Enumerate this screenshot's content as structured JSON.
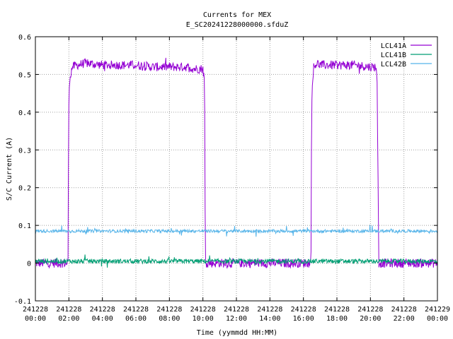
{
  "chart_data": {
    "type": "line",
    "title": "Currents for MEX",
    "subtitle": "E_SC20241228000000.sfduZ",
    "xlabel": "Time (yymmdd HH:MM)",
    "ylabel": "S/C Current (A)",
    "xlim": [
      0,
      24
    ],
    "ylim": [
      -0.1,
      0.6
    ],
    "grid": true,
    "legend_position": "top-right",
    "y_ticks": [
      {
        "value": -0.1,
        "label": "-0.1"
      },
      {
        "value": 0,
        "label": "0"
      },
      {
        "value": 0.1,
        "label": "0.1"
      },
      {
        "value": 0.2,
        "label": "0.2"
      },
      {
        "value": 0.3,
        "label": "0.3"
      },
      {
        "value": 0.4,
        "label": "0.4"
      },
      {
        "value": 0.5,
        "label": "0.5"
      },
      {
        "value": 0.6,
        "label": "0.6"
      }
    ],
    "x_ticks": [
      {
        "value": 0,
        "date": "241228",
        "time": "00:00"
      },
      {
        "value": 2,
        "date": "241228",
        "time": "02:00"
      },
      {
        "value": 4,
        "date": "241228",
        "time": "04:00"
      },
      {
        "value": 6,
        "date": "241228",
        "time": "06:00"
      },
      {
        "value": 8,
        "date": "241228",
        "time": "08:00"
      },
      {
        "value": 10,
        "date": "241228",
        "time": "10:00"
      },
      {
        "value": 12,
        "date": "241228",
        "time": "12:00"
      },
      {
        "value": 14,
        "date": "241228",
        "time": "14:00"
      },
      {
        "value": 16,
        "date": "241228",
        "time": "16:00"
      },
      {
        "value": 18,
        "date": "241228",
        "time": "18:00"
      },
      {
        "value": 20,
        "date": "241228",
        "time": "20:00"
      },
      {
        "value": 22,
        "date": "241228",
        "time": "22:00"
      },
      {
        "value": 24,
        "date": "241229",
        "time": "00:00"
      }
    ],
    "series": [
      {
        "name": "LCL41A",
        "color": "#9400d3",
        "x": [
          0,
          1.95,
          1.97,
          2.0,
          2.05,
          2.2,
          2.5,
          3.0,
          4.0,
          5.0,
          6.0,
          7.0,
          8.0,
          9.0,
          9.5,
          10.0,
          10.1,
          10.12,
          10.15,
          10.2,
          12.0,
          14.0,
          16.45,
          16.47,
          16.5,
          16.6,
          16.8,
          17.0,
          18.0,
          19.0,
          20.0,
          20.35,
          20.4,
          20.45,
          20.5,
          22.0,
          24.0
        ],
        "values": [
          0.0,
          0.0,
          0.25,
          0.42,
          0.49,
          0.52,
          0.525,
          0.53,
          0.525,
          0.525,
          0.525,
          0.52,
          0.52,
          0.52,
          0.515,
          0.515,
          0.48,
          0.25,
          0.0,
          0.0,
          0.0,
          0.0,
          0.0,
          0.25,
          0.43,
          0.52,
          0.53,
          0.525,
          0.525,
          0.525,
          0.52,
          0.52,
          0.47,
          0.25,
          0.0,
          0.0,
          0.0
        ]
      },
      {
        "name": "LCL41B",
        "color": "#009e73",
        "x": [
          0,
          24
        ],
        "values": [
          0.005,
          0.005
        ]
      },
      {
        "name": "LCL42B",
        "color": "#56b4e9",
        "x": [
          0,
          24
        ],
        "values": [
          0.085,
          0.085
        ]
      }
    ]
  }
}
